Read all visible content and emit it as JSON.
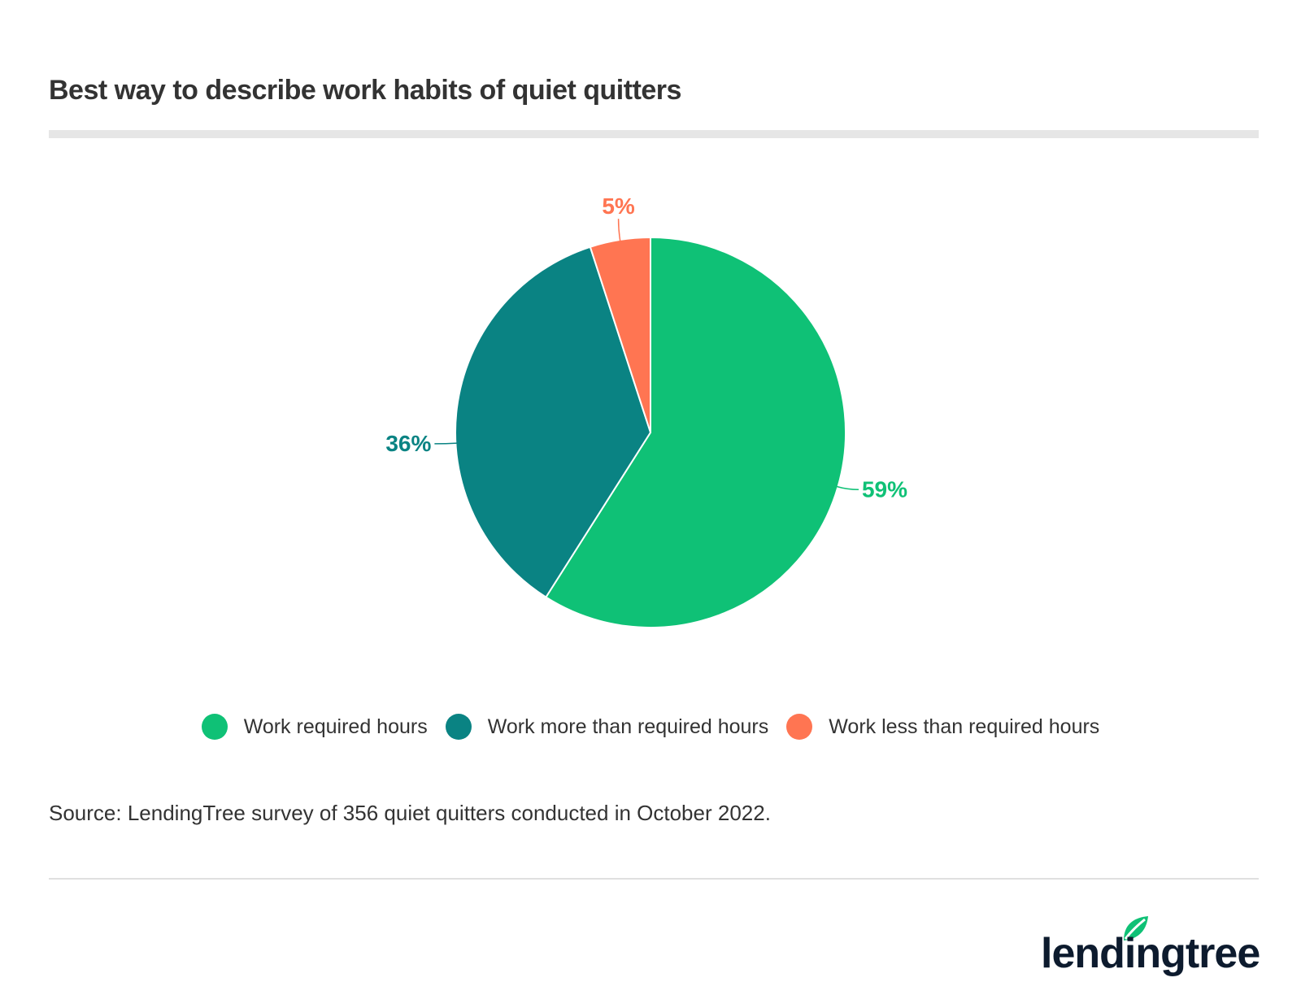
{
  "title": "Best way to describe work habits of quiet quitters",
  "source": "Source: LendingTree survey of 356 quiet quitters conducted in October 2022.",
  "logo_text": "lendingtree",
  "chart_data": {
    "type": "pie",
    "title": "Best way to describe work habits of quiet quitters",
    "slices": [
      {
        "name": "Work required hours",
        "value": 59,
        "label": "59%",
        "color": "#0fc176"
      },
      {
        "name": "Work more than required hours",
        "value": 36,
        "label": "36%",
        "color": "#0a8383"
      },
      {
        "name": "Work less than required hours",
        "value": 5,
        "label": "5%",
        "color": "#ff7552"
      }
    ],
    "legend_position": "bottom"
  }
}
